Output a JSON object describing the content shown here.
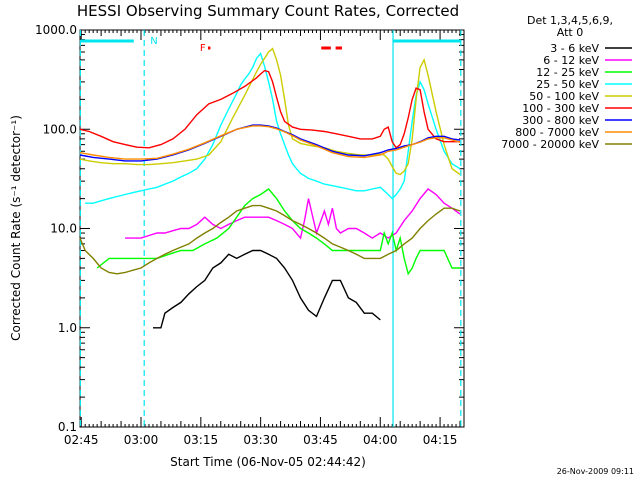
{
  "chart_data": {
    "type": "line",
    "title": "HESSI Observing Summary Count Rates, Corrected",
    "xlabel": "Start Time (06-Nov-05 02:44:42)",
    "ylabel": "Corrected Count Rate (s⁻¹ detector⁻¹)",
    "footer": "26-Nov-2009 09:11",
    "y_scale": "log",
    "ylim": [
      0.1,
      1000
    ],
    "xlim": [
      164.7,
      261
    ],
    "grid": false,
    "x_ticks": [
      {
        "v": 165,
        "label": "02:45"
      },
      {
        "v": 180,
        "label": "03:00"
      },
      {
        "v": 195,
        "label": "03:15"
      },
      {
        "v": 210,
        "label": "03:30"
      },
      {
        "v": 225,
        "label": "03:45"
      },
      {
        "v": 240,
        "label": "04:00"
      },
      {
        "v": 255,
        "label": "04:15"
      }
    ],
    "y_ticks": [
      {
        "v": 0.1,
        "label": "0.1"
      },
      {
        "v": 1,
        "label": "1.0"
      },
      {
        "v": 10,
        "label": "10.0"
      },
      {
        "v": 100,
        "label": "100.0"
      },
      {
        "v": 1000,
        "label": "1000.0"
      }
    ],
    "legend_header": [
      "Det 1,3,4,5,6,9,",
      "Att 0"
    ],
    "legend_position": "right",
    "series": [
      {
        "name": "3 - 6 keV",
        "color": "#000000",
        "x": [
          183,
          184,
          185,
          186,
          188,
          190,
          192,
          194,
          196,
          198,
          200,
          202,
          204,
          206,
          208,
          210,
          212,
          214,
          216,
          218,
          220,
          222,
          224,
          226,
          228,
          230,
          232,
          234,
          236,
          238,
          240
        ],
        "y": [
          1,
          1,
          1,
          1.4,
          1.6,
          1.8,
          2.2,
          2.6,
          3,
          4,
          4.5,
          5.5,
          5,
          5.5,
          6,
          6,
          5.5,
          5,
          4,
          3,
          2,
          1.5,
          1.3,
          2,
          3,
          3,
          2,
          1.8,
          1.4,
          1.4,
          1.2
        ]
      },
      {
        "name": "6 - 12 keV",
        "color": "#ff00ff",
        "x": [
          176,
          178,
          180,
          182,
          184,
          186,
          188,
          190,
          192,
          194,
          196,
          198,
          200,
          202,
          204,
          206,
          208,
          210,
          212,
          214,
          216,
          218,
          220,
          221,
          222,
          224,
          226,
          227,
          228,
          229,
          230,
          232,
          234,
          236,
          238,
          240,
          242,
          244,
          246,
          248,
          250,
          252,
          254,
          256,
          258,
          260
        ],
        "y": [
          8,
          8,
          8,
          8.5,
          9,
          9,
          9.5,
          10,
          10,
          11,
          13,
          11,
          10,
          11,
          12,
          13,
          13,
          13,
          13,
          12,
          11,
          10,
          8,
          12,
          20,
          9,
          15,
          11,
          16,
          10,
          9,
          10,
          10,
          9,
          8,
          9,
          8,
          9,
          12,
          15,
          20,
          25,
          22,
          18,
          16,
          14
        ]
      },
      {
        "name": "12 - 25 keV",
        "color": "#00ff00",
        "x": [
          169,
          172,
          175,
          178,
          181,
          184,
          187,
          190,
          193,
          196,
          199,
          202,
          204,
          206,
          208,
          210,
          212,
          214,
          216,
          218,
          220,
          222,
          224,
          226,
          228,
          230,
          232,
          234,
          236,
          238,
          240,
          241,
          242,
          243,
          244,
          245,
          246,
          247,
          248,
          249,
          250,
          252,
          254,
          256,
          258,
          260
        ],
        "y": [
          4,
          5,
          5,
          5,
          5,
          5,
          5.5,
          6,
          6,
          7,
          8,
          10,
          13,
          17,
          20,
          22,
          25,
          20,
          15,
          12,
          10,
          9,
          8,
          7,
          6,
          6,
          6,
          6,
          6,
          6,
          6,
          9,
          7,
          9,
          6,
          8,
          5,
          3.5,
          4,
          5,
          6,
          6,
          6,
          6,
          4,
          4
        ]
      },
      {
        "name": "25 - 50 keV",
        "color": "#00ffff",
        "x": [
          166,
          168,
          170,
          172,
          174,
          176,
          178,
          180,
          182,
          184,
          186,
          188,
          190,
          192,
          194,
          196,
          198,
          200,
          202,
          204,
          205,
          206,
          207,
          208,
          209,
          210,
          211,
          212,
          213,
          214,
          215,
          216,
          217,
          218,
          219,
          220,
          222,
          224,
          226,
          228,
          230,
          232,
          234,
          236,
          238,
          240,
          241,
          242,
          243,
          244,
          245,
          246,
          247,
          248,
          249,
          250,
          251,
          252,
          254,
          256,
          258,
          260
        ],
        "y": [
          18,
          18,
          19,
          20,
          21,
          22,
          23,
          24,
          25,
          26,
          28,
          30,
          33,
          36,
          40,
          50,
          70,
          110,
          160,
          230,
          280,
          320,
          360,
          420,
          520,
          580,
          430,
          300,
          200,
          120,
          90,
          70,
          55,
          45,
          40,
          36,
          32,
          30,
          28,
          27,
          26,
          25,
          24,
          24,
          25,
          26,
          24,
          22,
          20,
          22,
          25,
          30,
          60,
          120,
          220,
          300,
          250,
          180,
          100,
          60,
          45,
          40
        ]
      },
      {
        "name": "50 - 100 keV",
        "color": "#cccc00",
        "x": [
          164.7,
          167,
          170,
          173,
          176,
          179,
          182,
          185,
          188,
          191,
          194,
          197,
          200,
          203,
          206,
          209,
          210,
          211,
          212,
          213,
          214,
          215,
          216,
          217,
          218,
          220,
          223,
          226,
          229,
          232,
          235,
          238,
          240,
          241,
          242,
          243,
          244,
          245,
          246,
          247,
          248,
          249,
          250,
          251,
          252,
          254,
          256,
          258,
          260
        ],
        "y": [
          50,
          48,
          46,
          45,
          45,
          44,
          44,
          45,
          46,
          48,
          50,
          55,
          75,
          130,
          220,
          380,
          450,
          520,
          600,
          650,
          500,
          350,
          200,
          110,
          80,
          72,
          68,
          65,
          60,
          57,
          55,
          55,
          56,
          55,
          50,
          42,
          36,
          35,
          38,
          45,
          80,
          200,
          420,
          500,
          350,
          150,
          70,
          40,
          35
        ]
      },
      {
        "name": "100 - 300 keV",
        "color": "#ff0000",
        "x": [
          164.7,
          167,
          170,
          173,
          176,
          179,
          182,
          185,
          188,
          191,
          194,
          197,
          200,
          203,
          206,
          209,
          210,
          211,
          212,
          213,
          214,
          215,
          216,
          218,
          220,
          223,
          226,
          229,
          232,
          235,
          238,
          240,
          241,
          242,
          243,
          244,
          245,
          246,
          247,
          248,
          249,
          250,
          251,
          252,
          254,
          256,
          258,
          260
        ],
        "y": [
          100,
          95,
          85,
          75,
          70,
          66,
          65,
          70,
          80,
          100,
          140,
          180,
          200,
          230,
          270,
          330,
          360,
          390,
          380,
          300,
          210,
          150,
          120,
          105,
          100,
          98,
          95,
          90,
          85,
          80,
          80,
          85,
          100,
          105,
          75,
          65,
          70,
          90,
          130,
          200,
          260,
          250,
          150,
          100,
          80,
          75,
          75,
          75
        ]
      },
      {
        "name": "300 - 800 keV",
        "color": "#0000ff",
        "x": [
          164.7,
          168,
          172,
          176,
          180,
          184,
          188,
          192,
          196,
          200,
          204,
          208,
          210,
          212,
          214,
          216,
          218,
          220,
          224,
          228,
          232,
          236,
          240,
          242,
          244,
          246,
          248,
          250,
          252,
          254,
          256,
          258,
          260
        ],
        "y": [
          55,
          52,
          50,
          48,
          48,
          50,
          55,
          62,
          72,
          85,
          100,
          110,
          110,
          108,
          103,
          95,
          88,
          80,
          70,
          60,
          55,
          54,
          58,
          62,
          64,
          68,
          70,
          75,
          82,
          85,
          85,
          80,
          78
        ]
      },
      {
        "name": "800 - 7000 keV",
        "color": "#ff8c00",
        "x": [
          164.7,
          168,
          172,
          176,
          180,
          184,
          188,
          192,
          196,
          200,
          204,
          208,
          210,
          212,
          214,
          216,
          218,
          220,
          224,
          228,
          232,
          236,
          240,
          242,
          244,
          246,
          248,
          250,
          252,
          254,
          256,
          258,
          260
        ],
        "y": [
          58,
          55,
          52,
          50,
          50,
          51,
          56,
          63,
          73,
          86,
          100,
          108,
          108,
          106,
          101,
          94,
          86,
          78,
          68,
          58,
          53,
          52,
          55,
          60,
          62,
          66,
          70,
          74,
          80,
          82,
          82,
          78,
          74
        ]
      },
      {
        "name": "7000 - 20000 keV",
        "color": "#808000",
        "x": [
          164.7,
          166,
          168,
          170,
          172,
          174,
          176,
          178,
          180,
          182,
          184,
          186,
          188,
          190,
          192,
          194,
          196,
          198,
          200,
          202,
          204,
          206,
          208,
          210,
          212,
          214,
          216,
          218,
          220,
          222,
          224,
          226,
          228,
          230,
          232,
          234,
          236,
          238,
          240,
          242,
          244,
          246,
          248,
          250,
          252,
          254,
          256,
          258,
          260
        ],
        "y": [
          8,
          6,
          5,
          4,
          3.6,
          3.5,
          3.6,
          3.8,
          4,
          4.5,
          5,
          5.5,
          6,
          6.5,
          7,
          8,
          9,
          10,
          11.5,
          13,
          15,
          16,
          17,
          17,
          16,
          15,
          13.5,
          12,
          11,
          10,
          9,
          8,
          7,
          6.5,
          6,
          5.5,
          5,
          5,
          5,
          5.5,
          6,
          7,
          8,
          10,
          12,
          14,
          16,
          16,
          15
        ]
      }
    ],
    "attenuator_changes_x": [
      164.8,
      180.8,
      243.2,
      260.2
    ],
    "night_bars": [
      [
        164.8,
        178.2
      ],
      [
        243.2,
        260.2
      ]
    ],
    "saa_marker": {
      "label": "N",
      "x": 180.8
    },
    "flare_marker": {
      "label": "F",
      "x": 195.5
    },
    "flare_dashes": [
      [
        196.8,
        197.4
      ],
      [
        225.2,
        227.6
      ],
      [
        228.8,
        230.4
      ]
    ]
  }
}
